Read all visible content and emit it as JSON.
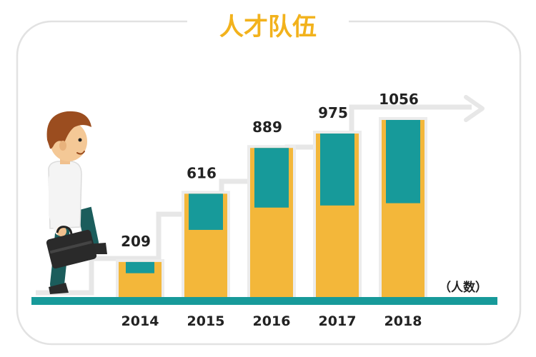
{
  "chart_data": {
    "type": "bar",
    "title": "人才队伍",
    "unit_label": "（人数）",
    "categories": [
      "2014",
      "2015",
      "2016",
      "2017",
      "2018"
    ],
    "values": [
      209,
      616,
      889,
      975,
      1056
    ],
    "ylim": [
      0,
      1200
    ],
    "grid": false,
    "legend": "none"
  },
  "colors": {
    "title": "#f2b21c",
    "bar_primary": "#f3b73a",
    "bar_secondary": "#179a9a",
    "bar_background": "#ececec",
    "baseline": "#179a9a",
    "stairs": "#e7e7e7",
    "frame": "#e2e2e2",
    "label_text": "#222222"
  },
  "icons": [
    "businessman-climbing-stairs-illustration",
    "briefcase-icon",
    "growth-arrow-icon"
  ]
}
